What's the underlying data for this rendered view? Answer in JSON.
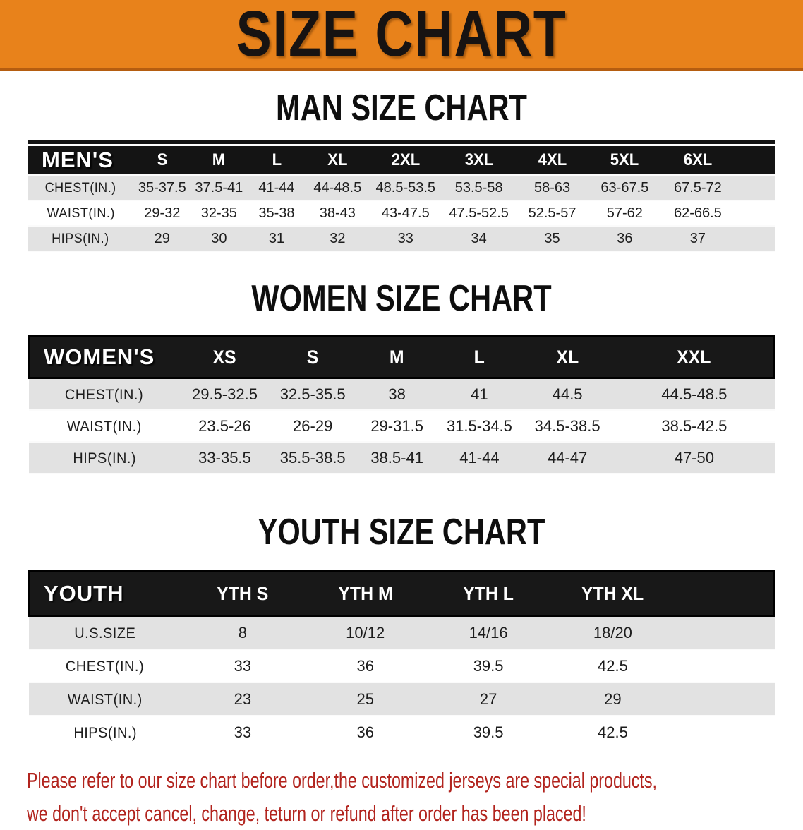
{
  "banner": {
    "title": "SIZE CHART",
    "background_color": "#E8821B",
    "text_color": "#171312"
  },
  "sections": [
    {
      "id": "mens",
      "title": "MAN SIZE CHART",
      "group_label": "MEN'S",
      "columns": [
        "S",
        "M",
        "L",
        "XL",
        "2XL",
        "3XL",
        "4XL",
        "5XL",
        "6XL"
      ],
      "rows": [
        {
          "label": "CHEST(IN.)",
          "values": [
            "35-37.5",
            "37.5-41",
            "41-44",
            "44-48.5",
            "48.5-53.5",
            "53.5-58",
            "58-63",
            "63-67.5",
            "67.5-72"
          ]
        },
        {
          "label": "WAIST(IN.)",
          "values": [
            "29-32",
            "32-35",
            "35-38",
            "38-43",
            "43-47.5",
            "47.5-52.5",
            "52.5-57",
            "57-62",
            "62-66.5"
          ]
        },
        {
          "label": "HIPS(IN.)",
          "values": [
            "29",
            "30",
            "31",
            "32",
            "33",
            "34",
            "35",
            "36",
            "37"
          ]
        }
      ]
    },
    {
      "id": "womens",
      "title": "WOMEN SIZE CHART",
      "group_label": "WOMEN'S",
      "columns": [
        "XS",
        "S",
        "M",
        "L",
        "XL",
        "XXL"
      ],
      "rows": [
        {
          "label": "CHEST(IN.)",
          "values": [
            "29.5-32.5",
            "32.5-35.5",
            "38",
            "41",
            "44.5",
            "44.5-48.5"
          ]
        },
        {
          "label": "WAIST(IN.)",
          "values": [
            "23.5-26",
            "26-29",
            "29-31.5",
            "31.5-34.5",
            "34.5-38.5",
            "38.5-42.5"
          ]
        },
        {
          "label": "HIPS(IN.)",
          "values": [
            "33-35.5",
            "35.5-38.5",
            "38.5-41",
            "41-44",
            "44-47",
            "47-50"
          ]
        }
      ]
    },
    {
      "id": "youth",
      "title": "YOUTH SIZE CHART",
      "group_label": "YOUTH",
      "columns": [
        "YTH S",
        "YTH M",
        "YTH L",
        "YTH XL"
      ],
      "rows": [
        {
          "label": "U.S.SIZE",
          "values": [
            "8",
            "10/12",
            "14/16",
            "18/20"
          ]
        },
        {
          "label": "CHEST(IN.)",
          "values": [
            "33",
            "36",
            "39.5",
            "42.5"
          ]
        },
        {
          "label": "WAIST(IN.)",
          "values": [
            "23",
            "25",
            "27",
            "29"
          ]
        },
        {
          "label": "HIPS(IN.)",
          "values": [
            "33",
            "36",
            "39.5",
            "42.5"
          ]
        }
      ]
    }
  ],
  "footer": {
    "line1": "Please refer to our size chart before order,the customized jerseys are special products,",
    "line2": "we don't accept cancel, change, teturn or refund after order has been placed!",
    "text_color": "#B2241E"
  }
}
